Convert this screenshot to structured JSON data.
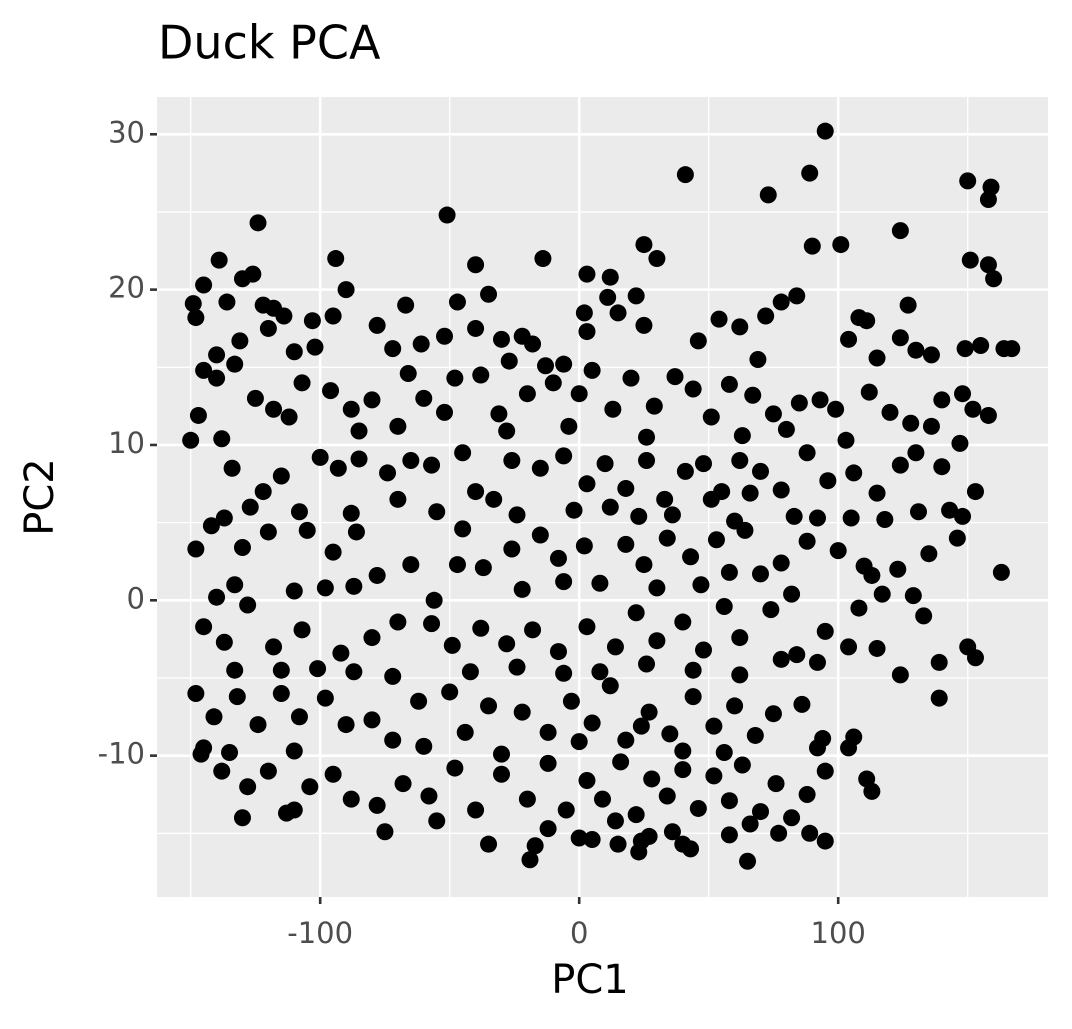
{
  "chart_data": {
    "type": "scatter",
    "title": "Duck PCA",
    "x_label": "PC1",
    "y_label": "PC2",
    "color": "#000000",
    "panel_color": "#ebebeb",
    "grid": true,
    "xlim": [
      -163,
      181
    ],
    "ylim": [
      -19.1,
      32.4
    ],
    "xticks": [
      -100,
      0,
      100
    ],
    "yticks": [
      -10,
      0,
      10,
      20,
      30
    ],
    "x_minor_grid": [
      -150,
      -50,
      50,
      150
    ],
    "y_minor_grid": [
      -15,
      -5,
      5,
      15,
      25
    ],
    "x": [
      95,
      41,
      73,
      89,
      150,
      159,
      158,
      -124,
      -51,
      -14,
      25,
      30,
      101,
      90,
      124,
      151,
      158,
      160,
      -139,
      -94,
      -40,
      -126,
      -130,
      -145,
      -90,
      -47,
      -35,
      3,
      12,
      11,
      22,
      84,
      78,
      127,
      -149,
      -136,
      -122,
      -67,
      164,
      155,
      149,
      167,
      -118,
      -114,
      -103,
      -120,
      -95,
      -78,
      -131,
      -140,
      -133,
      -110,
      -102,
      -72,
      -61,
      -52,
      -40,
      -30,
      -22,
      -18,
      -6,
      2,
      3,
      15,
      25,
      46,
      54,
      62,
      72,
      69,
      108,
      111,
      104,
      124,
      130,
      136,
      115,
      -148,
      -145,
      -27,
      -13,
      -147,
      -138,
      -125,
      -118,
      -107,
      -96,
      -88,
      -80,
      -70,
      -60,
      -48,
      -38,
      -31,
      -20,
      -10,
      -4,
      5,
      13,
      20,
      29,
      37,
      44,
      51,
      58,
      67,
      75,
      85,
      93,
      99,
      112,
      120,
      128,
      140,
      148,
      152,
      158,
      -140,
      -112,
      -52,
      -66,
      0,
      63,
      103,
      -85,
      -28,
      26,
      80,
      136,
      -150,
      -134,
      -122,
      -115,
      -100,
      -93,
      -85,
      -74,
      -65,
      -57,
      -45,
      -40,
      -26,
      -15,
      -6,
      3,
      10,
      18,
      26,
      33,
      41,
      48,
      55,
      62,
      70,
      78,
      88,
      96,
      106,
      115,
      124,
      130,
      140,
      147,
      153,
      -137,
      -127,
      -108,
      -88,
      -70,
      -55,
      -45,
      -33,
      -24,
      -2,
      12,
      23,
      36,
      51,
      60,
      66,
      83,
      92,
      105,
      118,
      131,
      143,
      148,
      -148,
      -142,
      -130,
      -120,
      -105,
      -95,
      -86,
      -78,
      -65,
      -47,
      -37,
      -26,
      -15,
      -8,
      2,
      8,
      18,
      25,
      34,
      43,
      53,
      58,
      64,
      70,
      78,
      88,
      100,
      110,
      113,
      123,
      135,
      146,
      -140,
      -133,
      -110,
      -98,
      -87,
      -56,
      -22,
      -6,
      30,
      47,
      82,
      117,
      129,
      163,
      -145,
      -137,
      -128,
      -118,
      -107,
      -92,
      -80,
      -70,
      -57,
      -49,
      -38,
      -28,
      -18,
      -8,
      3,
      14,
      22,
      30,
      40,
      48,
      56,
      62,
      74,
      84,
      95,
      104,
      108,
      115,
      133,
      150,
      -133,
      -115,
      -101,
      -87,
      -72,
      -42,
      -24,
      -6,
      8,
      26,
      44,
      62,
      78,
      92,
      124,
      139,
      153,
      -148,
      -141,
      -132,
      -124,
      -115,
      -108,
      -98,
      -90,
      -80,
      -72,
      -62,
      -50,
      -44,
      -35,
      -22,
      -12,
      -3,
      5,
      12,
      18,
      27,
      35,
      44,
      52,
      60,
      68,
      75,
      86,
      94,
      104,
      139,
      -145,
      -135,
      -110,
      -60,
      -30,
      0,
      40,
      92,
      24,
      56,
      -146,
      -138,
      -128,
      -120,
      -113,
      -104,
      -95,
      -88,
      -78,
      -68,
      -58,
      -48,
      -40,
      -30,
      -20,
      -12,
      -5,
      3,
      9,
      16,
      22,
      28,
      34,
      40,
      46,
      52,
      58,
      63,
      70,
      76,
      82,
      88,
      95,
      111,
      113,
      -130,
      -110,
      -75,
      -55,
      -12,
      14,
      36,
      66,
      89,
      106,
      -35,
      -19,
      -17,
      0,
      5,
      15,
      24,
      27,
      40,
      43,
      58,
      65,
      77,
      95,
      23
    ],
    "values": [
      30.2,
      27.4,
      26.1,
      27.5,
      27,
      26.6,
      25.8,
      24.3,
      24.8,
      22,
      22.9,
      22,
      22.9,
      22.8,
      23.8,
      21.9,
      21.6,
      20.7,
      21.9,
      22,
      21.6,
      21,
      20.7,
      20.3,
      20,
      19.2,
      19.7,
      21,
      20.8,
      19.5,
      19.6,
      19.6,
      19.2,
      19,
      19.1,
      19.2,
      19,
      19,
      16.2,
      16.4,
      16.2,
      16.2,
      18.8,
      18.3,
      18,
      17.5,
      18.3,
      17.7,
      16.7,
      15.8,
      15.2,
      16,
      16.3,
      16.2,
      16.5,
      17,
      17.5,
      16.8,
      17,
      16.5,
      15.2,
      18.5,
      17.3,
      18.5,
      17.7,
      16.7,
      18.1,
      17.6,
      18.3,
      15.5,
      18.2,
      18,
      16.8,
      16.9,
      16.1,
      15.8,
      15.6,
      18.2,
      14.8,
      15.4,
      15.1,
      11.9,
      10.4,
      13,
      12.3,
      14,
      13.5,
      12.3,
      12.9,
      11.2,
      13,
      14.3,
      14.5,
      12,
      13.3,
      14,
      11.2,
      14.8,
      12.3,
      14.3,
      12.5,
      14.4,
      13.6,
      11.8,
      13.9,
      13.2,
      12,
      12.7,
      12.9,
      12.3,
      13.4,
      12.1,
      11.4,
      12.9,
      13.3,
      12.3,
      11.9,
      14.3,
      11.8,
      12.1,
      14.6,
      13.3,
      10.6,
      10.3,
      10.9,
      10.9,
      10.5,
      11,
      11.2,
      10.3,
      8.5,
      7,
      8,
      9.2,
      8.5,
      9.1,
      8.2,
      9,
      8.7,
      9.5,
      7,
      9,
      8.5,
      9.3,
      7.5,
      8.8,
      7.2,
      9,
      6.5,
      8.3,
      8.8,
      7,
      9,
      8.3,
      7.1,
      9.5,
      7.7,
      8.2,
      6.9,
      8.7,
      9.5,
      8.6,
      10.1,
      7,
      5.3,
      6,
      5.7,
      5.6,
      6.5,
      5.7,
      4.6,
      6.5,
      5.5,
      5.8,
      6,
      5.4,
      5.5,
      6.5,
      5.1,
      6.9,
      5.4,
      5.3,
      5.3,
      5.2,
      5.7,
      5.8,
      5.4,
      3.3,
      4.8,
      3.4,
      4.4,
      4.5,
      3.1,
      4.4,
      1.6,
      2.3,
      2.3,
      2.1,
      3.3,
      4.2,
      2.7,
      3.5,
      1.1,
      3.6,
      2.3,
      4,
      2.8,
      3.9,
      1.8,
      4.5,
      1.7,
      2.4,
      3.8,
      3.2,
      2.2,
      1.6,
      2,
      3,
      4,
      0.2,
      1,
      0.6,
      0.8,
      0.9,
      0,
      0.7,
      1.2,
      0.8,
      1,
      0.4,
      0.4,
      0.3,
      1.8,
      -1.7,
      -2.7,
      -0.3,
      -3,
      -1.9,
      -3.4,
      -2.4,
      -1.4,
      -1.5,
      -2.9,
      -1.8,
      -2.8,
      -1.9,
      -3.3,
      -1.7,
      -3,
      -0.8,
      -2.6,
      -1.4,
      -3.2,
      -0.4,
      -2.4,
      -0.6,
      -3.5,
      -2,
      -3,
      -0.5,
      -3.1,
      -1,
      -3,
      -4.5,
      -4.5,
      -4.4,
      -4.6,
      -4.9,
      -4.6,
      -4.3,
      -4.7,
      -4.6,
      -4.1,
      -4.5,
      -4.8,
      -3.8,
      -4,
      -4.8,
      -4,
      -3.7,
      -6,
      -7.5,
      -6.2,
      -8,
      -6,
      -7.5,
      -6.3,
      -8,
      -7.7,
      -9,
      -6.5,
      -5.9,
      -8.5,
      -6.8,
      -7.2,
      -8.5,
      -6.5,
      -7.9,
      -5.5,
      -9,
      -7.2,
      -8.6,
      -6.2,
      -8.1,
      -6.8,
      -8.7,
      -7.3,
      -6.7,
      -8.9,
      -9.5,
      -6.3,
      -9.5,
      -9.8,
      -9.7,
      -9.4,
      -9.9,
      -9.1,
      -9.7,
      -9.5,
      -8.1,
      -9.8,
      -9.9,
      -11,
      -12,
      -11,
      -13.7,
      -12,
      -11.2,
      -12.8,
      -13.2,
      -11.8,
      -12.6,
      -10.8,
      -13.5,
      -11.2,
      -12.8,
      -10.5,
      -13.5,
      -11.6,
      -12.8,
      -10.4,
      -13.8,
      -11.5,
      -12.6,
      -10.9,
      -13.4,
      -11.3,
      -12.9,
      -10.6,
      -13.6,
      -11.8,
      -14,
      -12.5,
      -11,
      -11.5,
      -12.3,
      -14,
      -13.5,
      -14.9,
      -14.2,
      -14.7,
      -14.2,
      -14.9,
      -14.4,
      -15,
      -8.8,
      -15.7,
      -16.7,
      -15.8,
      -15.3,
      -15.4,
      -15.7,
      -15.5,
      -15.2,
      -15.7,
      -16,
      -15.1,
      -16.8,
      -15,
      -15.5,
      -16.2
    ]
  }
}
